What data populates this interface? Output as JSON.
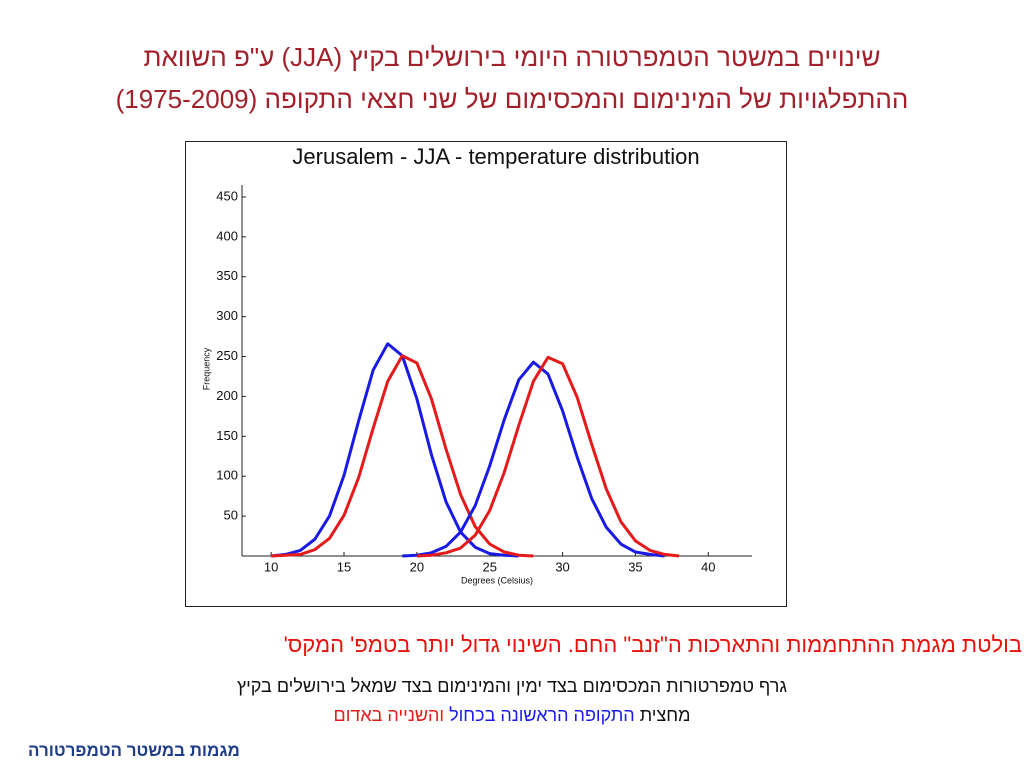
{
  "slide_title": {
    "line1": "שינויים במשטר הטמפרטורה היומי בירושלים בקיץ (JJA) ע\"פ השוואת",
    "line2": "ההתפלגויות של המינימום והמכסימום של שני חצאי התקופה (1975-2009)"
  },
  "chart_data": {
    "type": "line",
    "title": "Jerusalem - JJA - temperature distribution",
    "x_label": "Degrees (Celsius)",
    "y_label": "Frequency",
    "x": [
      10,
      11,
      12,
      13,
      14,
      15,
      16,
      17,
      18,
      19,
      20,
      21,
      22,
      23,
      24,
      25,
      26,
      27,
      28,
      29,
      30,
      31,
      32,
      33,
      34,
      35,
      36,
      37,
      38
    ],
    "series": [
      {
        "color": "#1a1ae6",
        "values": [
          0,
          2,
          7,
          21,
          50,
          101,
          169,
          233,
          266,
          251,
          197,
          127,
          68,
          30,
          11,
          3,
          1,
          0,
          null,
          null,
          null,
          null,
          null,
          null,
          null,
          null,
          null,
          null,
          null
        ]
      },
      {
        "color": "#e61a1a",
        "values": [
          0,
          1,
          2,
          8,
          22,
          51,
          98,
          160,
          219,
          251,
          242,
          197,
          134,
          77,
          37,
          15,
          5,
          1,
          0,
          null,
          null,
          null,
          null,
          null,
          null,
          null,
          null,
          null,
          null
        ]
      },
      {
        "color": "#1a1ae6",
        "values": [
          null,
          null,
          null,
          null,
          null,
          null,
          null,
          null,
          null,
          0,
          1,
          4,
          12,
          30,
          63,
          113,
          171,
          221,
          243,
          228,
          182,
          124,
          72,
          36,
          15,
          5,
          2,
          0,
          null
        ]
      },
      {
        "color": "#e61a1a",
        "values": [
          null,
          null,
          null,
          null,
          null,
          null,
          null,
          null,
          null,
          null,
          0,
          1,
          4,
          10,
          26,
          57,
          105,
          164,
          219,
          249,
          241,
          199,
          140,
          84,
          43,
          19,
          7,
          2,
          0
        ]
      }
    ],
    "xlim": [
      8,
      43
    ],
    "ylim": [
      0,
      465
    ],
    "xticks": [
      10,
      15,
      20,
      25,
      30,
      35,
      40
    ],
    "yticks": [
      50,
      100,
      150,
      200,
      250,
      300,
      350,
      400,
      450
    ],
    "grid": false
  },
  "captions": {
    "finding": "בולטת מגמת ההתחממות והתארכות ה\"זנב\" החם. השינוי גדול יותר בטמפ' המקס'",
    "description": "גרף טמפרטורות המכסימום בצד ימין והמינימום בצד שמאל בירושלים בקיץ",
    "legend_prefix": "מחצית",
    "legend_first": "התקופה הראשונה בכחול",
    "legend_second": "והשנייה באדום"
  },
  "footer": "מגמות במשטר הטמפרטורה"
}
